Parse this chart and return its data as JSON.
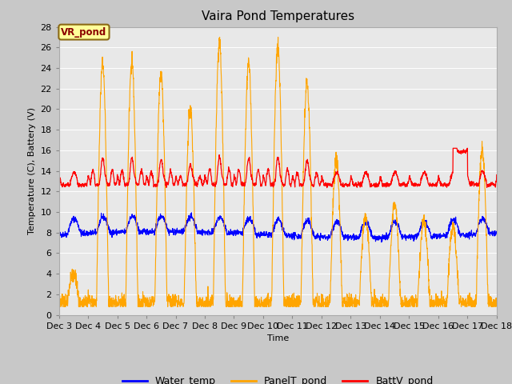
{
  "title": "Vaira Pond Temperatures",
  "ylabel": "Temperature (C), Battery (V)",
  "xlabel": "Time",
  "xlim": [
    0,
    360
  ],
  "ylim": [
    0,
    28
  ],
  "yticks": [
    0,
    2,
    4,
    6,
    8,
    10,
    12,
    14,
    16,
    18,
    20,
    22,
    24,
    26,
    28
  ],
  "xtick_labels": [
    "Dec 3",
    "Dec 4",
    "Dec 5",
    "Dec 6",
    "Dec 7",
    "Dec 8",
    "Dec 9",
    "Dec 10",
    "Dec 11",
    "Dec 12",
    "Dec 13",
    "Dec 14",
    "Dec 15",
    "Dec 16",
    "Dec 17",
    "Dec 18"
  ],
  "xtick_positions": [
    0,
    24,
    48,
    72,
    96,
    120,
    144,
    168,
    192,
    216,
    240,
    264,
    288,
    312,
    336,
    360
  ],
  "water_color": "#0000ff",
  "panel_color": "#ffa500",
  "batt_color": "#ff0000",
  "fig_bg": "#c8c8c8",
  "plot_bg": "#e8e8e8",
  "legend_label": "VR_pond",
  "grid_color": "#ffffff",
  "title_fontsize": 11,
  "label_fontsize": 8,
  "tick_fontsize": 8
}
